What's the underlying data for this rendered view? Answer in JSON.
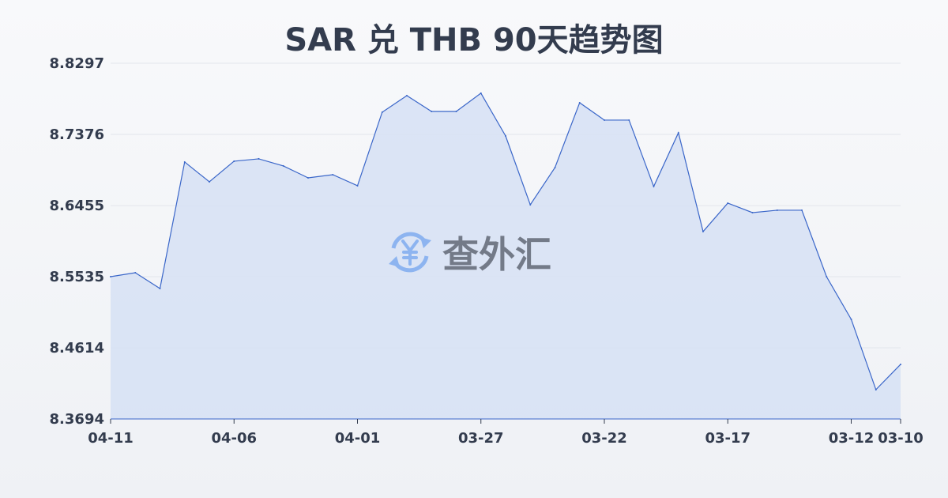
{
  "chart_data": {
    "type": "area",
    "title": "SAR 兑 THB 90天趋势图",
    "x": [
      "04-11",
      "04-10",
      "04-09",
      "04-08",
      "04-07",
      "04-06",
      "04-05",
      "04-04",
      "04-03",
      "04-02",
      "04-01",
      "03-31",
      "03-30",
      "03-29",
      "03-28",
      "03-27",
      "03-26",
      "03-25",
      "03-24",
      "03-23",
      "03-22",
      "03-21",
      "03-20",
      "03-19",
      "03-18",
      "03-17",
      "03-16",
      "03-15",
      "03-14",
      "03-13",
      "03-12",
      "03-11",
      "03-10"
    ],
    "values": [
      8.5535,
      8.5586,
      8.5382,
      8.7019,
      8.6763,
      8.7029,
      8.706,
      8.6968,
      8.6814,
      8.6855,
      8.6712,
      8.7663,
      8.7878,
      8.7673,
      8.7673,
      8.7909,
      8.7356,
      8.6466,
      8.6947,
      8.7786,
      8.7561,
      8.7561,
      8.6702,
      8.7397,
      8.6119,
      8.6487,
      8.6364,
      8.6395,
      8.6395,
      8.5535,
      8.4983,
      8.4073,
      8.44
    ],
    "x_tick_labels": [
      "04-11",
      "04-06",
      "04-01",
      "03-27",
      "03-22",
      "03-17",
      "03-12",
      "03-10"
    ],
    "y_tick_labels": [
      "8.8297",
      "8.7376",
      "8.6455",
      "8.5535",
      "8.4614",
      "8.3694"
    ],
    "ylim": [
      8.3694,
      8.8297
    ],
    "grid": true,
    "line_color": "#3a66c9",
    "fill_color": "#d6e0f5"
  },
  "watermark": {
    "text": "查外汇",
    "icon": "yen-exchange-icon",
    "icon_color": "#8db4f0"
  }
}
